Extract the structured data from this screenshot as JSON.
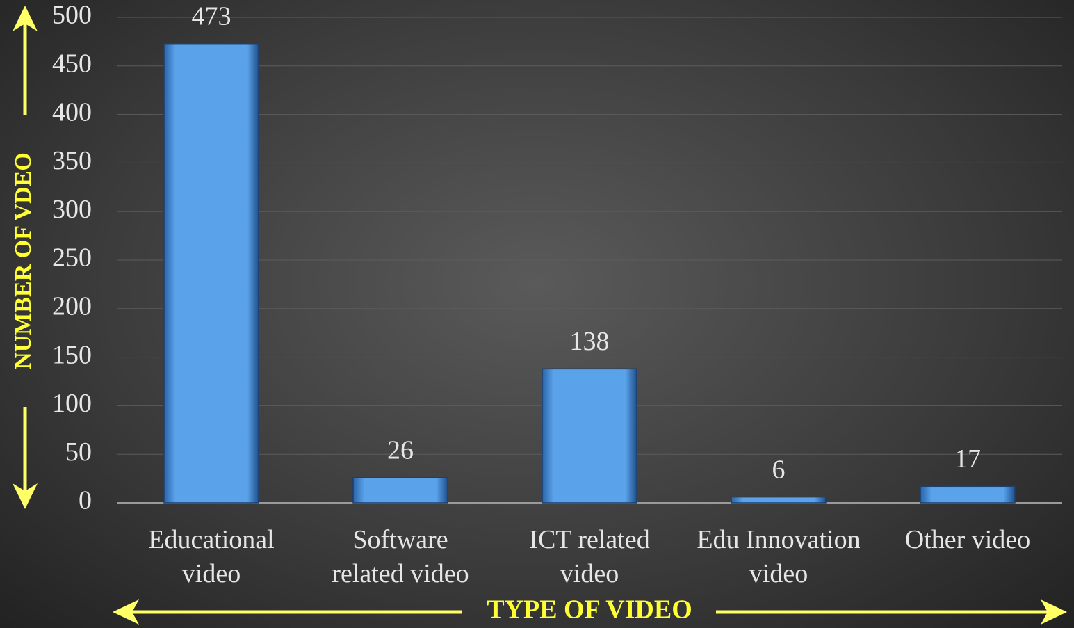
{
  "chart_data": {
    "type": "bar",
    "categories": [
      "Educational\nvideo",
      "Software\nrelated video",
      "ICT related\nvideo",
      "Edu Innovation\nvideo",
      "Other video"
    ],
    "values": [
      473,
      26,
      138,
      6,
      17
    ],
    "color": "#4a90dc",
    "ylim": [
      0,
      500
    ],
    "yticks": [
      0,
      50,
      100,
      150,
      200,
      250,
      300,
      350,
      400,
      450,
      500
    ],
    "grid": true,
    "x_label": "TYPE OF VIDEO",
    "y_label": "NUMBER OF VDEO"
  }
}
